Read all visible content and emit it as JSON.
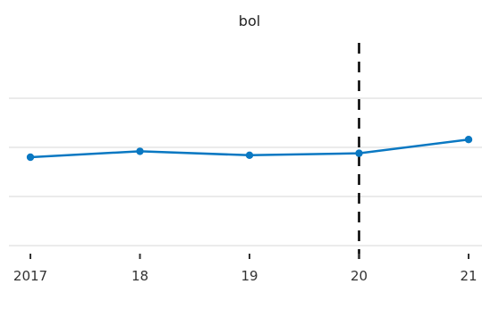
{
  "chart_data": {
    "type": "line",
    "title": "bol",
    "xlabel": "",
    "ylabel": "",
    "x": [
      2017,
      2018,
      2019,
      2020,
      2021
    ],
    "x_tick_labels": [
      "2017",
      "18",
      "19",
      "20",
      "21"
    ],
    "series": [
      {
        "values": [
          0.9,
          0.96,
          0.92,
          0.94,
          1.08
        ],
        "color": "#0a78c2"
      }
    ],
    "ylim": [
      0,
      2.0
    ],
    "y_gridlines": [
      0,
      0.5,
      1.0,
      1.5,
      2.0
    ],
    "y_tick_labels_shown": false,
    "reference_line": {
      "x": 2020,
      "style": "dashed",
      "color": "#000000"
    },
    "grid": true,
    "legend": "none"
  }
}
